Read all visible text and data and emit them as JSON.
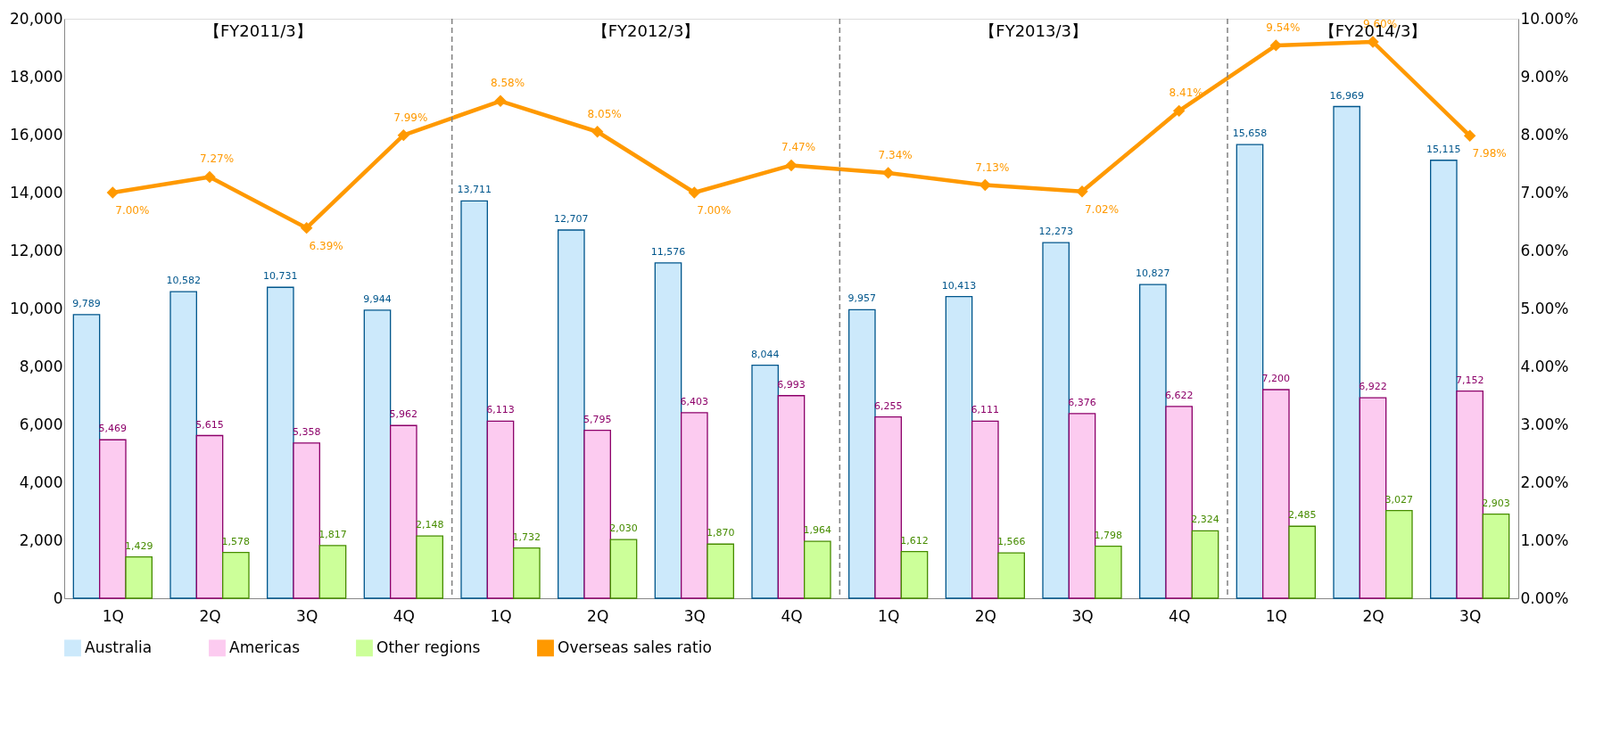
{
  "chart_data": {
    "type": "bar",
    "categories": [
      "1Q",
      "2Q",
      "3Q",
      "4Q",
      "1Q",
      "2Q",
      "3Q",
      "4Q",
      "1Q",
      "2Q",
      "3Q",
      "4Q",
      "1Q",
      "2Q",
      "3Q"
    ],
    "series": [
      {
        "name": "Australia",
        "color": "#cce9fb",
        "values": [
          9789,
          10582,
          10731,
          9944,
          13711,
          12707,
          11576,
          8044,
          9957,
          10413,
          12273,
          10827,
          15658,
          16969,
          15115
        ],
        "value_labels": [
          "9,789",
          "10,582",
          "10,731",
          "9,944",
          "13,711",
          "12,707",
          "11,576",
          "8,044",
          "9,957",
          "10,413",
          "12,273",
          "10,827",
          "15,658",
          "16,969",
          "15,115"
        ]
      },
      {
        "name": "Americas",
        "color": "#fccbf0",
        "values": [
          5469,
          5615,
          5358,
          5962,
          6113,
          5795,
          6403,
          6993,
          6255,
          6111,
          6376,
          6622,
          7200,
          6922,
          7152
        ],
        "value_labels": [
          "5,469",
          "5,615",
          "5,358",
          "5,962",
          "6,113",
          "5,795",
          "6,403",
          "6,993",
          "6,255",
          "6,111",
          "6,376",
          "6,622",
          "7,200",
          "6,922",
          "7,152"
        ]
      },
      {
        "name": "Other regions",
        "color": "#ccff99",
        "values": [
          1429,
          1578,
          1817,
          2148,
          1732,
          2030,
          1870,
          1964,
          1612,
          1566,
          1798,
          2324,
          2485,
          3027,
          2903
        ],
        "value_labels": [
          "1,429",
          "1,578",
          "1,817",
          "2,148",
          "1,732",
          "2,030",
          "1,870",
          "1,964",
          "1,612",
          "1,566",
          "1,798",
          "2,324",
          "2,485",
          "3,027",
          "2,903"
        ]
      },
      {
        "name": "Overseas sales ratio",
        "type": "line",
        "axis": "y2",
        "color": "#ff9900",
        "marker": "diamond",
        "values": [
          7.0,
          7.27,
          6.39,
          7.99,
          8.58,
          8.05,
          7.0,
          7.47,
          7.34,
          7.13,
          7.02,
          8.41,
          9.54,
          9.6,
          7.98
        ],
        "value_labels": [
          "7.00%",
          "7.27%",
          "6.39%",
          "7.99%",
          "8.58%",
          "8.05%",
          "7.00%",
          "7.47%",
          "7.34%",
          "7.13%",
          "7.02%",
          "8.41%",
          "9.54%",
          "9.60%",
          "7.98%"
        ]
      }
    ],
    "ylim": [
      0,
      20000
    ],
    "yticks": [
      {
        "value": 0,
        "label": "0"
      },
      {
        "value": 2000,
        "label": "2,000"
      },
      {
        "value": 4000,
        "label": "4,000"
      },
      {
        "value": 6000,
        "label": "6,000"
      },
      {
        "value": 8000,
        "label": "8,000"
      },
      {
        "value": 10000,
        "label": "10,000"
      },
      {
        "value": 12000,
        "label": "12,000"
      },
      {
        "value": 14000,
        "label": "14,000"
      },
      {
        "value": 16000,
        "label": "16,000"
      },
      {
        "value": 18000,
        "label": "18,000"
      },
      {
        "value": 20000,
        "label": "20,000"
      }
    ],
    "y2lim": [
      0,
      10
    ],
    "y2ticks": [
      {
        "value": 0,
        "label": "0.00%"
      },
      {
        "value": 1,
        "label": "1.00%"
      },
      {
        "value": 2,
        "label": "2.00%"
      },
      {
        "value": 3,
        "label": "3.00%"
      },
      {
        "value": 4,
        "label": "4.00%"
      },
      {
        "value": 5,
        "label": "5.00%"
      },
      {
        "value": 6,
        "label": "6.00%"
      },
      {
        "value": 7,
        "label": "7.00%"
      },
      {
        "value": 8,
        "label": "8.00%"
      },
      {
        "value": 9,
        "label": "9.00%"
      },
      {
        "value": 10,
        "label": "10.00%"
      }
    ],
    "annotations": [
      "【FY2011/3】",
      "【FY2012/3】",
      "【FY2013/3】",
      "【FY2014/3】"
    ],
    "grid": false,
    "legend": "bottom"
  }
}
